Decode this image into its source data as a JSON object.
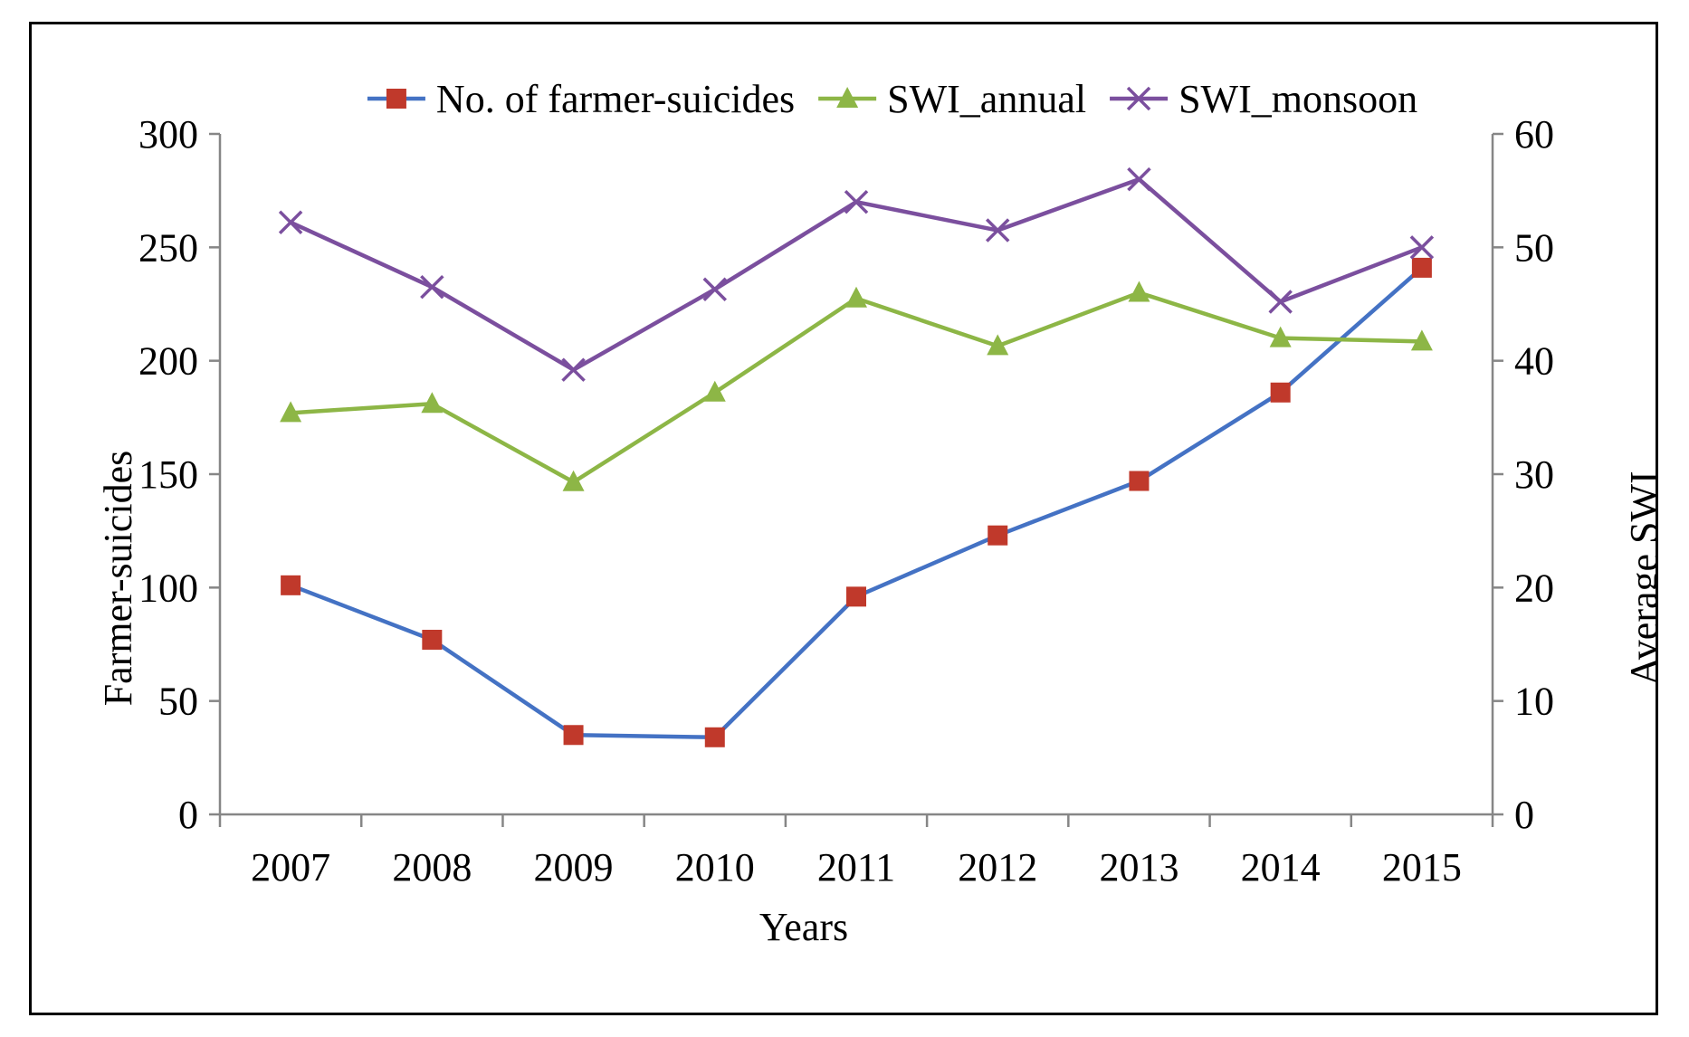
{
  "chart_data": {
    "type": "line",
    "categories": [
      "2007",
      "2008",
      "2009",
      "2010",
      "2011",
      "2012",
      "2013",
      "2014",
      "2015"
    ],
    "series": [
      {
        "name": "No. of farmer-suicides",
        "axis": "left",
        "color": "#4472C4",
        "marker_color": "#C0392B",
        "marker": "square",
        "values": [
          101,
          77,
          35,
          34,
          96,
          123,
          147,
          186,
          241
        ]
      },
      {
        "name": "SWI_annual",
        "axis": "right",
        "color": "#8DB646",
        "marker": "triangle",
        "values": [
          35.4,
          36.2,
          29.3,
          37.2,
          45.5,
          41.3,
          46.0,
          42.0,
          41.7
        ]
      },
      {
        "name": "SWI_monsoon",
        "axis": "right",
        "color": "#7B4F9E",
        "marker": "x",
        "values": [
          52.2,
          46.5,
          39.2,
          46.3,
          54.0,
          51.5,
          56.0,
          45.2,
          50.0
        ]
      }
    ],
    "xlabel": "Years",
    "ylabel": "Farmer-suicides",
    "y2label": "Average SWI",
    "ylim": [
      0,
      300
    ],
    "y2lim": [
      0,
      60
    ],
    "yticks": [
      "0",
      "50",
      "100",
      "150",
      "200",
      "250",
      "300"
    ],
    "y2ticks": [
      "0",
      "10",
      "20",
      "30",
      "40",
      "50",
      "60"
    ],
    "legend_position": "top",
    "grid": false
  }
}
